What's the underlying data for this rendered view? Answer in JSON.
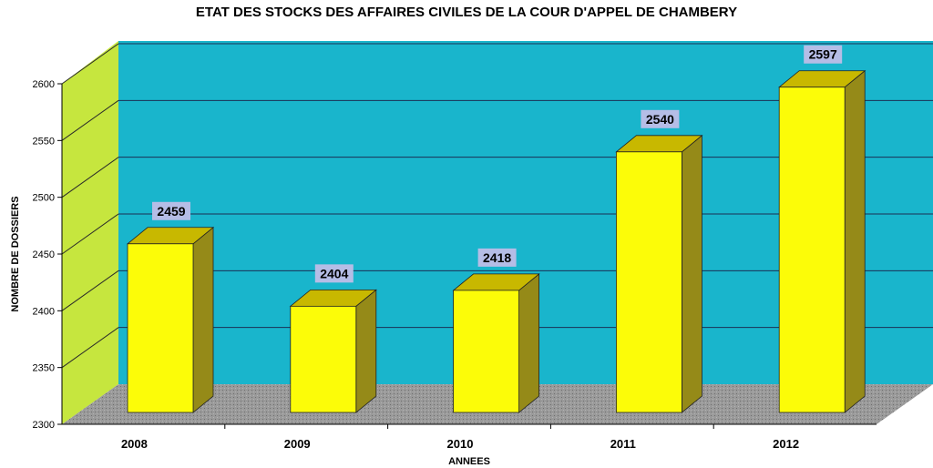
{
  "chart_data": {
    "type": "bar",
    "title": "ETAT DES STOCKS DES AFFAIRES CIVILES DE LA COUR D'APPEL DE CHAMBERY",
    "xlabel": "ANNEES",
    "ylabel": "NOMBRE DE DOSSIERS",
    "categories": [
      "2008",
      "2009",
      "2010",
      "2011",
      "2012"
    ],
    "values": [
      2459,
      2404,
      2418,
      2540,
      2597
    ],
    "data_labels": [
      "2459",
      "2404",
      "2418",
      "2540",
      "2597"
    ],
    "ylim": [
      2300,
      2600
    ],
    "yticks": [
      "2300",
      "2350",
      "2400",
      "2450",
      "2500",
      "2550",
      "2600"
    ],
    "grid": true,
    "style": "3d",
    "colors": {
      "background_wall": "#19b5cc",
      "left_wall": "#c8e840",
      "floor": "#8f8f8f",
      "bar_front": "#fcfc08",
      "bar_top": "#c8b800",
      "bar_side": "#958a18",
      "data_label_bg": "#b5bde6",
      "gridline": "#1a2f55"
    }
  }
}
